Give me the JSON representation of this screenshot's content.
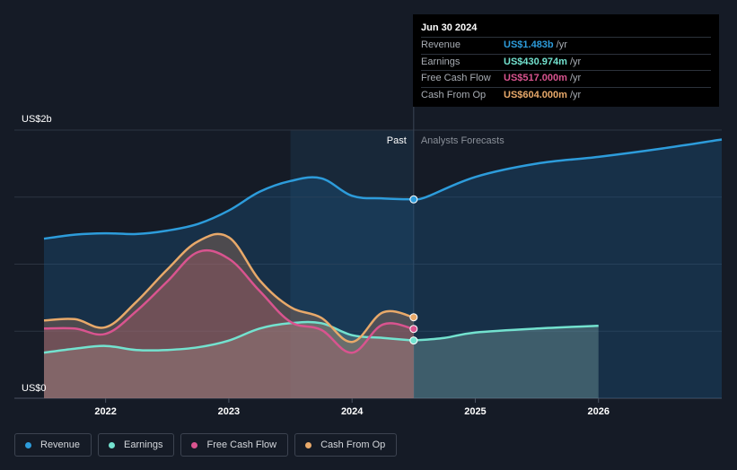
{
  "tooltip": {
    "date": "Jun 30 2024",
    "rows": [
      {
        "label": "Revenue",
        "value": "US$1.483b",
        "unit": "/yr",
        "color": "#2d9cdb"
      },
      {
        "label": "Earnings",
        "value": "US$430.974m",
        "unit": "/yr",
        "color": "#73e2cf"
      },
      {
        "label": "Free Cash Flow",
        "value": "US$517.000m",
        "unit": "/yr",
        "color": "#d9548f"
      },
      {
        "label": "Cash From Op",
        "value": "US$604.000m",
        "unit": "/yr",
        "color": "#e8a96a"
      }
    ]
  },
  "legend": [
    {
      "label": "Revenue",
      "color": "#2d9cdb"
    },
    {
      "label": "Earnings",
      "color": "#73e2cf"
    },
    {
      "label": "Free Cash Flow",
      "color": "#d9548f"
    },
    {
      "label": "Cash From Op",
      "color": "#e8a96a"
    }
  ],
  "chart_data": {
    "type": "line",
    "y_unit": "US$",
    "ylim": [
      0,
      2.0
    ],
    "y_tick_labels": [
      {
        "value": 2.0,
        "label": "US$2b"
      },
      {
        "value": 0,
        "label": "US$0"
      }
    ],
    "xlim": [
      2021.5,
      2027.0
    ],
    "x_ticks": [
      2022,
      2023,
      2024,
      2025,
      2026
    ],
    "x_tick_labels": [
      "2022",
      "2023",
      "2024",
      "2025",
      "2026"
    ],
    "past_label": "Past",
    "forecast_label": "Analysts Forecasts",
    "past_start": 2023.5,
    "divider_x": 2024.5,
    "highlight_x": 2024.5,
    "series": [
      {
        "name": "Revenue",
        "color": "#2d9cdb",
        "past": [
          [
            2021.5,
            1.19
          ],
          [
            2021.75,
            1.22
          ],
          [
            2022.0,
            1.23
          ],
          [
            2022.25,
            1.225
          ],
          [
            2022.5,
            1.25
          ],
          [
            2022.75,
            1.3
          ],
          [
            2023.0,
            1.4
          ],
          [
            2023.25,
            1.54
          ],
          [
            2023.5,
            1.62
          ],
          [
            2023.75,
            1.64
          ],
          [
            2024.0,
            1.51
          ],
          [
            2024.25,
            1.49
          ],
          [
            2024.5,
            1.483
          ]
        ],
        "forecast": [
          [
            2024.6,
            1.5
          ],
          [
            2025.0,
            1.65
          ],
          [
            2025.5,
            1.75
          ],
          [
            2026.0,
            1.8
          ],
          [
            2026.5,
            1.86
          ],
          [
            2027.0,
            1.93
          ]
        ]
      },
      {
        "name": "Earnings",
        "color": "#73e2cf",
        "past": [
          [
            2021.5,
            0.34
          ],
          [
            2021.75,
            0.37
          ],
          [
            2022.0,
            0.39
          ],
          [
            2022.25,
            0.36
          ],
          [
            2022.5,
            0.36
          ],
          [
            2022.75,
            0.38
          ],
          [
            2023.0,
            0.43
          ],
          [
            2023.25,
            0.52
          ],
          [
            2023.5,
            0.56
          ],
          [
            2023.75,
            0.56
          ],
          [
            2024.0,
            0.47
          ],
          [
            2024.25,
            0.45
          ],
          [
            2024.5,
            0.431
          ]
        ],
        "forecast": [
          [
            2024.75,
            0.45
          ],
          [
            2025.0,
            0.49
          ],
          [
            2025.5,
            0.52
          ],
          [
            2026.0,
            0.54
          ]
        ]
      },
      {
        "name": "Free Cash Flow",
        "color": "#d9548f",
        "past": [
          [
            2021.5,
            0.52
          ],
          [
            2021.75,
            0.52
          ],
          [
            2022.0,
            0.48
          ],
          [
            2022.25,
            0.65
          ],
          [
            2022.5,
            0.87
          ],
          [
            2022.75,
            1.09
          ],
          [
            2023.0,
            1.04
          ],
          [
            2023.25,
            0.8
          ],
          [
            2023.5,
            0.57
          ],
          [
            2023.75,
            0.51
          ],
          [
            2024.0,
            0.34
          ],
          [
            2024.25,
            0.55
          ],
          [
            2024.5,
            0.517
          ]
        ],
        "forecast": []
      },
      {
        "name": "Cash From Op",
        "color": "#e8a96a",
        "past": [
          [
            2021.5,
            0.58
          ],
          [
            2021.75,
            0.59
          ],
          [
            2022.0,
            0.53
          ],
          [
            2022.25,
            0.72
          ],
          [
            2022.5,
            0.96
          ],
          [
            2022.75,
            1.17
          ],
          [
            2023.0,
            1.2
          ],
          [
            2023.25,
            0.88
          ],
          [
            2023.5,
            0.68
          ],
          [
            2023.75,
            0.6
          ],
          [
            2024.0,
            0.42
          ],
          [
            2024.25,
            0.64
          ],
          [
            2024.5,
            0.604
          ]
        ],
        "forecast": []
      }
    ]
  }
}
